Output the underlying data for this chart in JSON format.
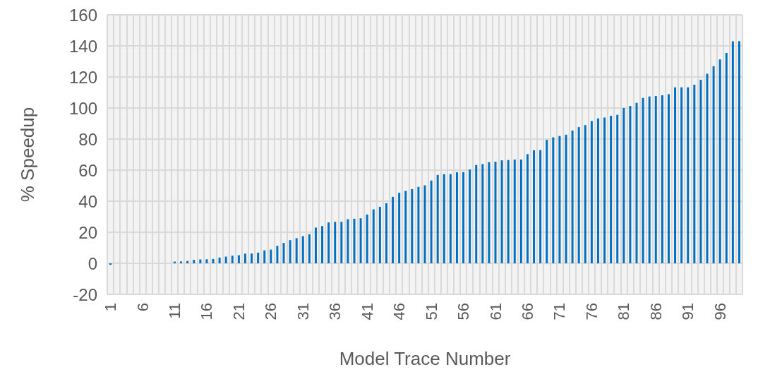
{
  "chart_data": {
    "type": "bar",
    "xlabel": "Model Trace Number",
    "ylabel": "% Speedup",
    "categories": [
      "1",
      null,
      null,
      null,
      null,
      "6",
      null,
      null,
      null,
      null,
      "11",
      null,
      null,
      null,
      null,
      "16",
      null,
      null,
      null,
      null,
      "21",
      null,
      null,
      null,
      null,
      "26",
      null,
      null,
      null,
      null,
      "31",
      null,
      null,
      null,
      null,
      "36",
      null,
      null,
      null,
      null,
      "41",
      null,
      null,
      null,
      null,
      "46",
      null,
      null,
      null,
      null,
      "51",
      null,
      null,
      null,
      null,
      "56",
      null,
      null,
      null,
      null,
      "61",
      null,
      null,
      null,
      null,
      "66",
      null,
      null,
      null,
      null,
      "71",
      null,
      null,
      null,
      null,
      "76",
      null,
      null,
      null,
      null,
      "81",
      null,
      null,
      null,
      null,
      "86",
      null,
      null,
      null,
      null,
      "91",
      null,
      null,
      null,
      null,
      "96",
      null,
      null,
      null
    ],
    "values": [
      -1,
      0,
      0,
      0,
      0,
      0,
      0,
      0,
      0,
      0,
      1.1,
      1.2,
      1.5,
      2.2,
      2.5,
      2.6,
      2.8,
      3.7,
      4.3,
      4.9,
      5.2,
      6.2,
      6.3,
      6.9,
      8.3,
      8.8,
      11.2,
      13.1,
      14.9,
      16.2,
      17.5,
      18.7,
      23,
      24,
      26.3,
      26.7,
      26.7,
      28.4,
      28.7,
      29,
      31.4,
      34.7,
      36.4,
      38.7,
      42.8,
      45.4,
      46.6,
      47.8,
      49.2,
      50.2,
      53.3,
      56.9,
      57.4,
      57.4,
      58.6,
      58.7,
      60.4,
      63.3,
      63.9,
      65.1,
      65.4,
      66.3,
      66.5,
      66.8,
      66.8,
      70.3,
      72.8,
      72.9,
      79.5,
      81.1,
      82,
      82.8,
      85.5,
      87.7,
      89,
      91.6,
      93.3,
      93.9,
      95,
      95.6,
      100,
      101.3,
      103.3,
      106.5,
      107.4,
      107.7,
      108.2,
      108.9,
      113.3,
      113.3,
      113.3,
      115,
      118.2,
      122,
      126.9,
      131.3,
      135.4,
      143,
      143.1
    ],
    "color": "#0070c0",
    "ylim": [
      -20,
      160
    ],
    "yticks": [
      -20,
      0,
      20,
      40,
      60,
      80,
      100,
      120,
      140,
      160
    ],
    "grid": true
  }
}
